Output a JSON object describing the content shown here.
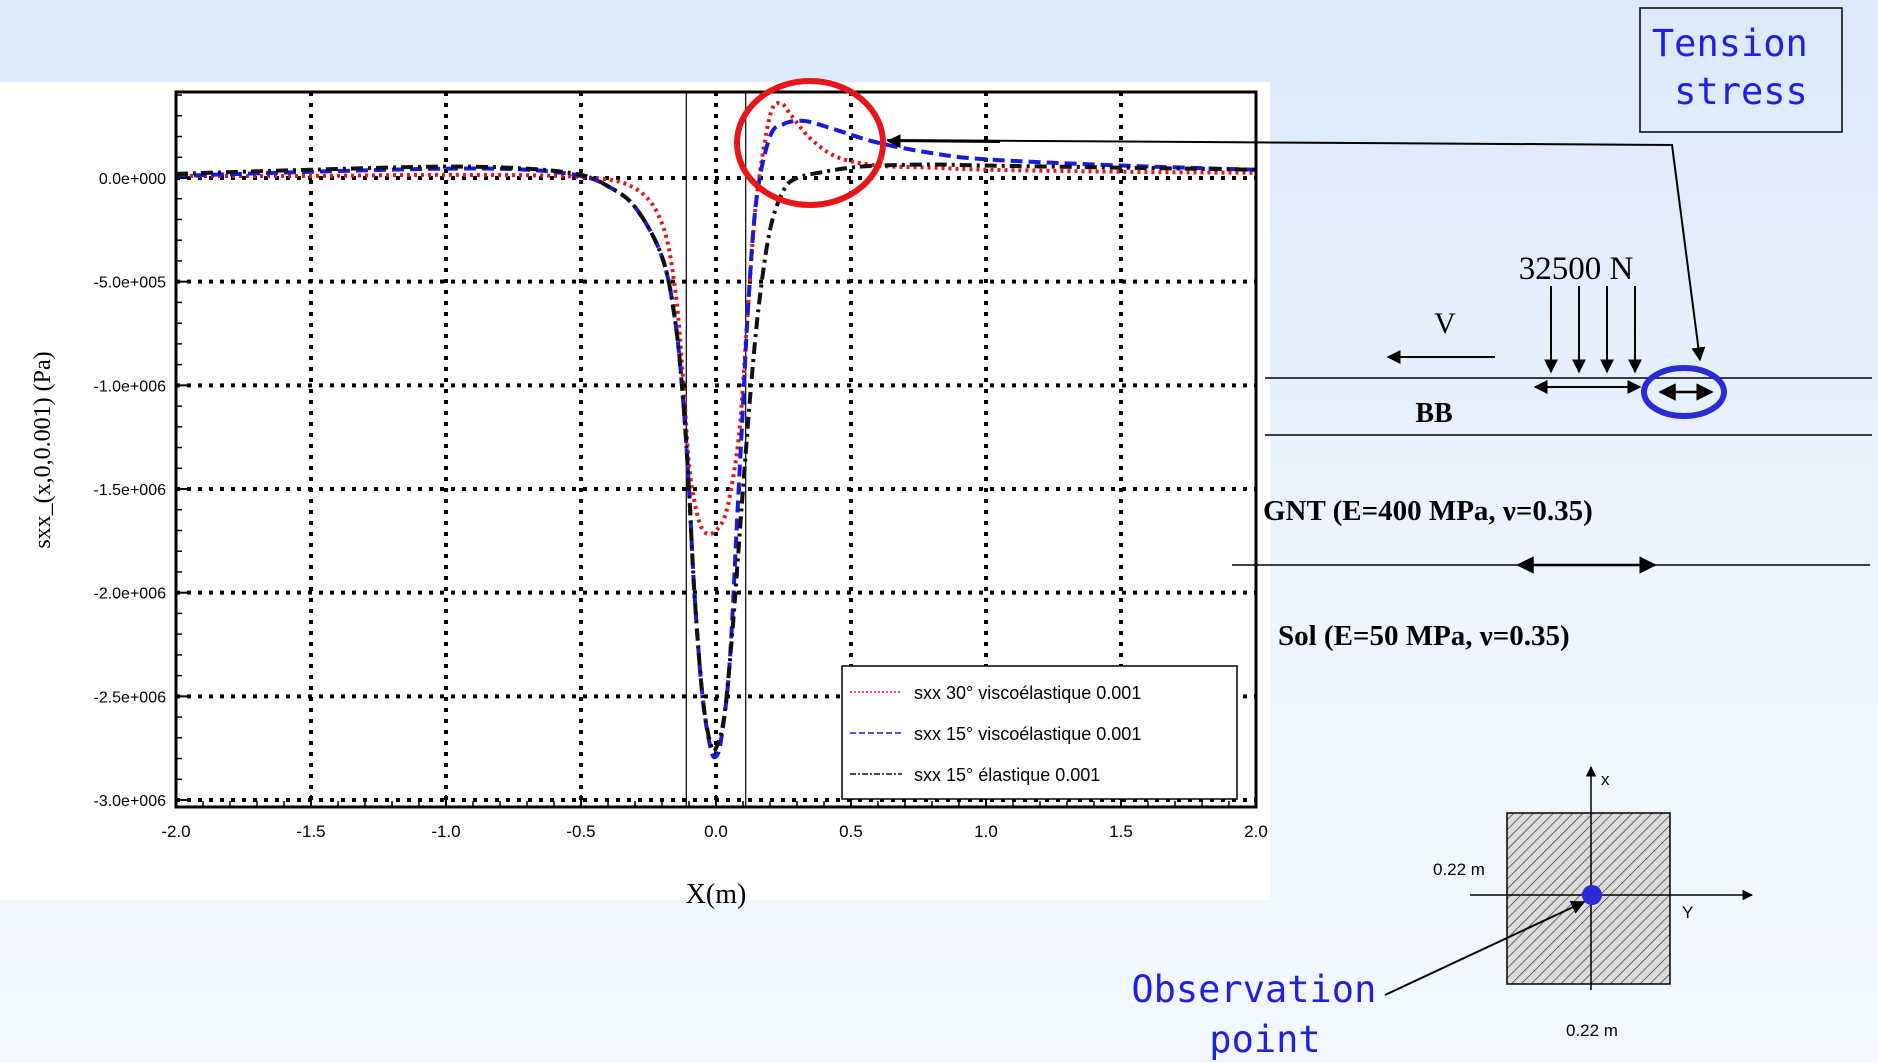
{
  "chart_data": {
    "type": "line",
    "xlabel": "X(m)",
    "ylabel": "sxx_(x,0,0.001) (Pa)",
    "xlim": [
      -2.0,
      2.0
    ],
    "ylim": [
      -3050000.0,
      400000.0
    ],
    "x_ticks": [
      "-2.0",
      "-1.5",
      "-1.0",
      "-0.5",
      "0.0",
      "0.5",
      "1.0",
      "1.5",
      "2.0"
    ],
    "x_tick_values": [
      -2.0,
      -1.5,
      -1.0,
      -0.5,
      0.0,
      0.5,
      1.0,
      1.5,
      2.0
    ],
    "y_ticks": [
      "0.0e+000",
      "-5.0e+005",
      "-1.0e+006",
      "-1.5e+006",
      "-2.0e+006",
      "-2.5e+006",
      "-3.0e+006"
    ],
    "y_tick_values": [
      0,
      -500000,
      -1000000,
      -1500000,
      -2000000,
      -2500000,
      -3000000
    ],
    "grid": true,
    "legend_position": "bottom-right",
    "vertical_lines_x": [
      -0.11,
      0.11
    ],
    "series": [
      {
        "name": "sxx 30° viscoélastique 0.001",
        "color": "#e8161b",
        "style": "dotted",
        "x": [
          -2.0,
          -1.5,
          -1.0,
          -0.5,
          -0.3,
          -0.2,
          -0.15,
          -0.12,
          -0.1,
          -0.07,
          -0.04,
          0.0,
          0.04,
          0.08,
          0.1,
          0.12,
          0.15,
          0.2,
          0.24,
          0.28,
          0.35,
          0.45,
          0.6,
          0.8,
          1.0,
          1.5,
          2.0
        ],
        "y": [
          10000,
          10000,
          15000,
          5000,
          -50000,
          -220000,
          -550000,
          -1000000,
          -1380000,
          -1620000,
          -1710000,
          -1700000,
          -1600000,
          -1300000,
          -1000000,
          -600000,
          -100000,
          300000,
          360000,
          300000,
          190000,
          100000,
          60000,
          50000,
          40000,
          30000,
          25000
        ]
      },
      {
        "name": "sxx 15° viscoélastique 0.001",
        "color": "#1a1adc",
        "style": "dashed",
        "x": [
          -2.0,
          -1.5,
          -1.0,
          -0.7,
          -0.5,
          -0.4,
          -0.3,
          -0.2,
          -0.15,
          -0.12,
          -0.1,
          -0.08,
          -0.05,
          -0.02,
          0.0,
          0.02,
          0.05,
          0.08,
          0.1,
          0.12,
          0.15,
          0.2,
          0.25,
          0.3,
          0.35,
          0.45,
          0.6,
          0.8,
          1.0,
          1.5,
          2.0
        ],
        "y": [
          10000,
          30000,
          45000,
          40000,
          10000,
          -40000,
          -140000,
          -380000,
          -700000,
          -1100000,
          -1500000,
          -2000000,
          -2500000,
          -2750000,
          -2790000,
          -2700000,
          -2350000,
          -1600000,
          -1100000,
          -600000,
          -100000,
          200000,
          260000,
          275000,
          270000,
          230000,
          170000,
          120000,
          90000,
          60000,
          40000
        ]
      },
      {
        "name": "sxx 15° élastique 0.001",
        "color": "#111111",
        "style": "dashdot",
        "x": [
          -2.0,
          -1.5,
          -1.0,
          -0.7,
          -0.5,
          -0.4,
          -0.3,
          -0.2,
          -0.15,
          -0.12,
          -0.1,
          -0.08,
          -0.05,
          -0.02,
          0.0,
          0.03,
          0.06,
          0.1,
          0.13,
          0.16,
          0.2,
          0.25,
          0.3,
          0.4,
          0.5,
          0.6,
          0.8,
          1.0,
          1.5,
          2.0
        ],
        "y": [
          20000,
          40000,
          55000,
          45000,
          15000,
          -40000,
          -140000,
          -380000,
          -700000,
          -1100000,
          -1500000,
          -2000000,
          -2500000,
          -2730000,
          -2750000,
          -2600000,
          -2200000,
          -1500000,
          -1000000,
          -600000,
          -250000,
          -60000,
          0,
          30000,
          50000,
          60000,
          65000,
          60000,
          50000,
          40000
        ]
      }
    ]
  },
  "annotations": {
    "tension_label": "Tension\nstress",
    "observation_label": "Observation\npoint",
    "load_label": "32500 N",
    "velocity_label": "V",
    "layer_bb": "BB",
    "layer_gnt": "GNT (E=400 MPa, ν=0.35)",
    "layer_sol": "Sol (E=50 MPa, ν=0.35)",
    "section_axis_x": "x",
    "section_axis_y": "Y",
    "section_dim_vertical": "0.22 m",
    "section_dim_horizontal": "0.22 m"
  },
  "colors": {
    "red_highlight": "#e8161b",
    "blue_highlight": "#2a2ad6",
    "label_blue": "#2020e0"
  }
}
